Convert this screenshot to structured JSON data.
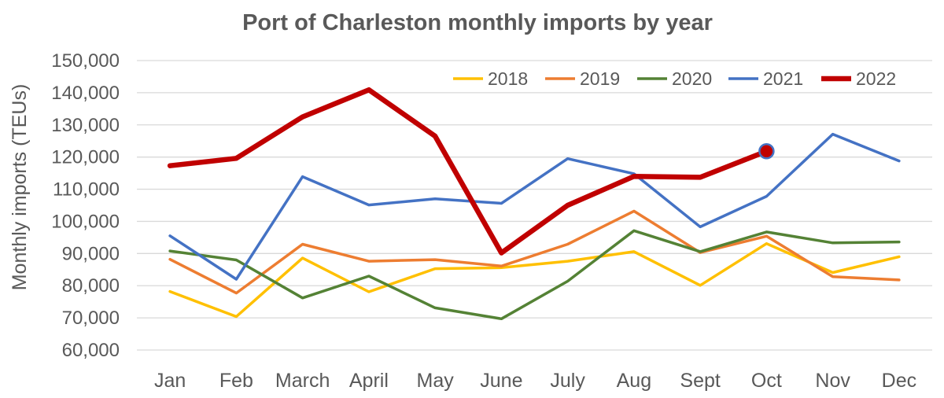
{
  "chart_data": {
    "type": "line",
    "title": "Port of Charleston monthly imports by year",
    "xlabel": "",
    "ylabel": "Monthly imports (TEUs)",
    "ylim": [
      60000,
      150000
    ],
    "ytick_step": 10000,
    "ytick_labels": [
      "60,000",
      "70,000",
      "80,000",
      "90,000",
      "100,000",
      "110,000",
      "120,000",
      "130,000",
      "140,000",
      "150,000"
    ],
    "grid": true,
    "legend_position": "top-right",
    "categories": [
      "Jan",
      "Feb",
      "March",
      "April",
      "May",
      "June",
      "July",
      "Aug",
      "Sept",
      "Oct",
      "Nov",
      "Dec"
    ],
    "series": [
      {
        "name": "2018",
        "color": "#FFC000",
        "emphasis": false,
        "values": [
          78200,
          70400,
          88600,
          78100,
          85300,
          85600,
          87600,
          90600,
          80100,
          93100,
          84100,
          89000
        ]
      },
      {
        "name": "2019",
        "color": "#ED7D31",
        "emphasis": false,
        "values": [
          88200,
          77700,
          92900,
          87600,
          88100,
          86100,
          92900,
          103200,
          90300,
          95400,
          82800,
          81800
        ]
      },
      {
        "name": "2020",
        "color": "#548235",
        "emphasis": false,
        "values": [
          90800,
          88000,
          76200,
          83000,
          73100,
          69700,
          81400,
          97100,
          90600,
          96700,
          93300,
          93600
        ]
      },
      {
        "name": "2021",
        "color": "#4472C4",
        "emphasis": false,
        "values": [
          95500,
          82000,
          113900,
          105100,
          107000,
          105600,
          119500,
          114800,
          98300,
          107800,
          127100,
          118800
        ]
      },
      {
        "name": "2022",
        "color": "#C00000",
        "emphasis": true,
        "values": [
          117300,
          119600,
          132500,
          140900,
          126500,
          90200,
          105000,
          114000,
          113700,
          121800,
          null,
          null
        ],
        "end_marker": {
          "fill": "#C00000",
          "stroke": "#4472C4"
        }
      }
    ]
  }
}
